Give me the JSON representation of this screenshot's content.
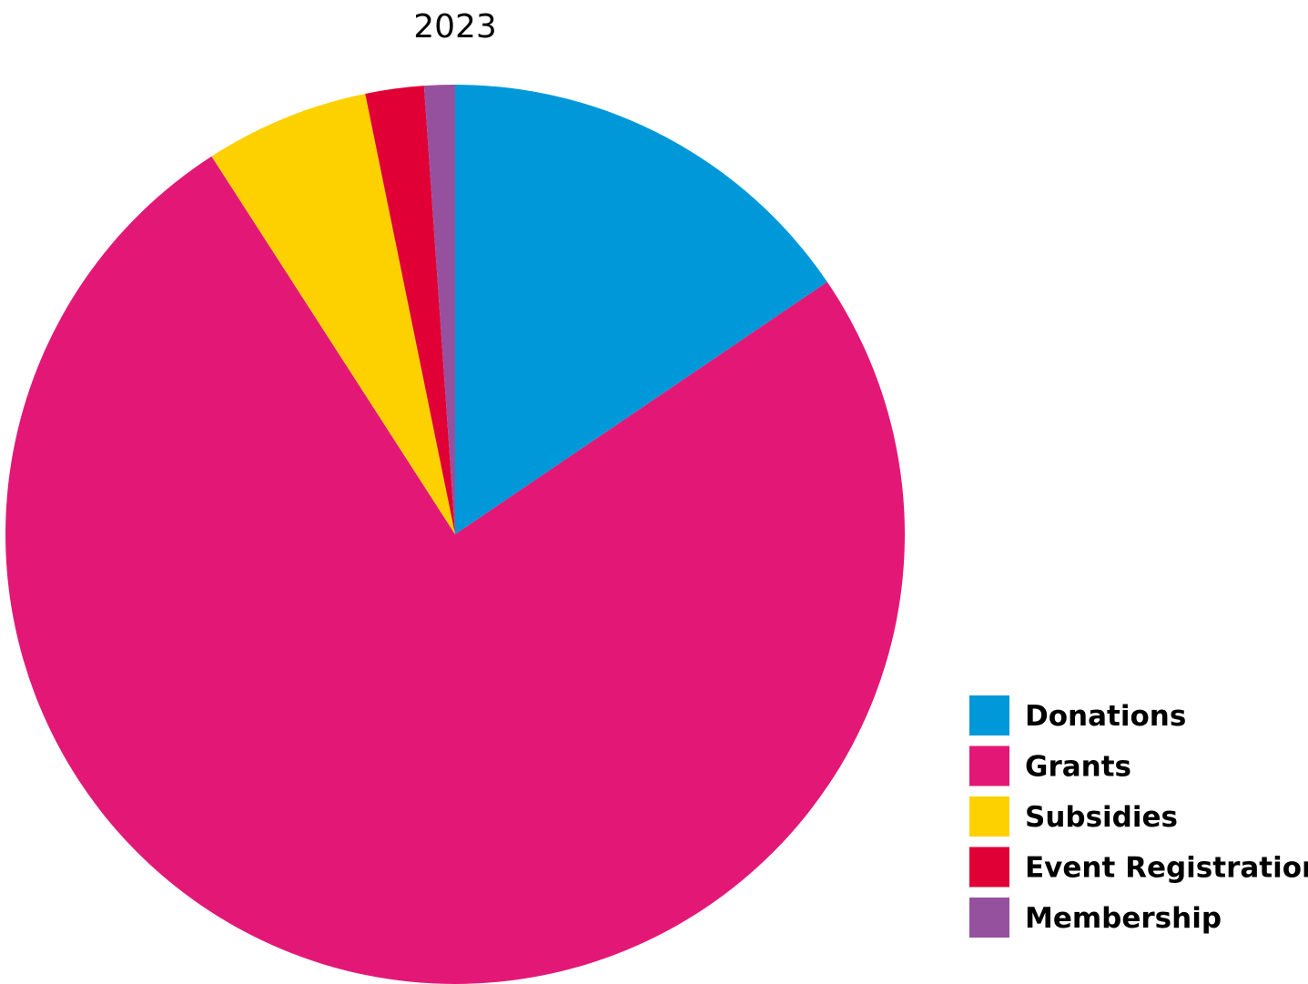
{
  "chart_data": {
    "type": "pie",
    "title": "2023",
    "start_angle": "12 o'clock",
    "direction": "clockwise",
    "slices": [
      {
        "label": "Donations",
        "value": 15.5,
        "color": "#0098d8"
      },
      {
        "label": "Grants",
        "value": 75.3,
        "color": "#e31876"
      },
      {
        "label": "Subsidies",
        "value": 5.9,
        "color": "#fdd100"
      },
      {
        "label": "Event Registration",
        "value": 2.1,
        "color": "#e00036"
      },
      {
        "label": "Membership",
        "value": 1.1,
        "color": "#96519e"
      }
    ],
    "legend": {
      "placement": "bottom-right",
      "items": [
        "Donations",
        "Grants",
        "Subsidies",
        "Event Registration",
        "Membership"
      ]
    }
  }
}
